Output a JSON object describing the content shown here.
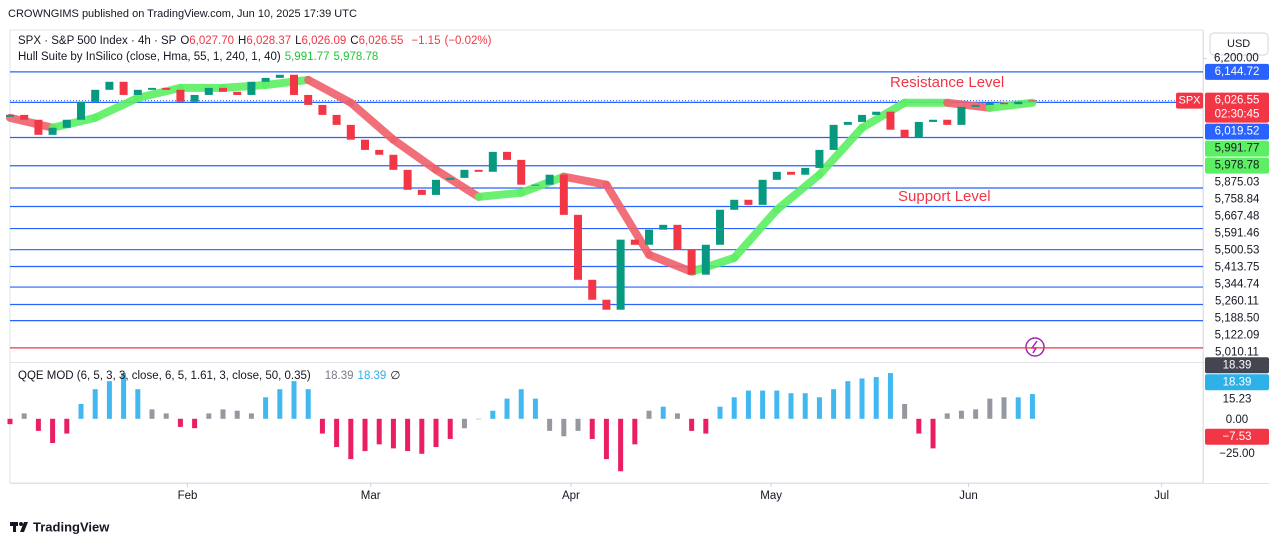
{
  "header": {
    "publisher": "CROWNGIMS published on TradingView.com, Jun 10, 2025 17:39 UTC",
    "brand": "TradingView"
  },
  "chart_data": [
    {
      "type": "candlestick",
      "symbol": "SPX · S&P 500 Index · 4h · SP",
      "ohlc_legend": [
        {
          "key": "O",
          "value": 6027.7,
          "label": "6,027.70"
        },
        {
          "key": "H",
          "value": 6028.37,
          "label": "6,028.37"
        },
        {
          "key": "L",
          "value": 6026.09,
          "label": "6,026.09"
        },
        {
          "key": "C",
          "value": 6026.55,
          "label": "6,026.55"
        }
      ],
      "change": {
        "value": -1.15,
        "label": "−1.15"
      },
      "change_pct": {
        "value": -0.02,
        "label": "(−0.02%)"
      },
      "currency": "USD",
      "xlim": [
        0,
        83.8
      ],
      "xticks": [
        {
          "value": 12.5,
          "label": "Feb"
        },
        {
          "value": 25.4,
          "label": "Mar"
        },
        {
          "value": 39.5,
          "label": "Apr"
        },
        {
          "value": 53.6,
          "label": "May"
        },
        {
          "value": 67.5,
          "label": "Jun"
        },
        {
          "value": 81.1,
          "label": "Jul"
        }
      ],
      "ylim": [
        4952,
        6317
      ],
      "yticks": [
        {
          "value": 6200,
          "label": "6,200.00"
        }
      ],
      "grid": false,
      "up_color": "#089981",
      "down_color": "#f23645",
      "open": [
        5960,
        5968,
        5948,
        5886,
        5915,
        5948,
        6022,
        6071,
        6104,
        6050,
        6071,
        6079,
        6071,
        6022,
        6050,
        6079,
        6063,
        6050,
        6104,
        6120,
        6133,
        6050,
        6009,
        5968,
        5927,
        5866,
        5824,
        5804,
        5742,
        5660,
        5639,
        5701,
        5709,
        5742,
        5734,
        5816,
        5783,
        5681,
        5681,
        5722,
        5557,
        5290,
        5208,
        5167,
        5455,
        5434,
        5496,
        5516,
        5413,
        5311,
        5434,
        5578,
        5619,
        5598,
        5701,
        5734,
        5722,
        5750,
        5824,
        5927,
        5939,
        5968,
        5981,
        5907,
        5874,
        5939,
        5948,
        5927,
        6001,
        6009,
        6018,
        6012,
        6027.7
      ],
      "close": [
        5968,
        5948,
        5886,
        5915,
        5948,
        6022,
        6071,
        6104,
        6050,
        6071,
        6079,
        6071,
        6022,
        6050,
        6079,
        6063,
        6050,
        6104,
        6120,
        6133,
        6050,
        6009,
        5968,
        5927,
        5866,
        5824,
        5804,
        5742,
        5660,
        5639,
        5701,
        5709,
        5742,
        5734,
        5816,
        5783,
        5681,
        5681,
        5722,
        5557,
        5290,
        5208,
        5167,
        5455,
        5434,
        5496,
        5516,
        5413,
        5311,
        5434,
        5578,
        5619,
        5598,
        5701,
        5734,
        5722,
        5750,
        5824,
        5927,
        5939,
        5968,
        5981,
        5907,
        5874,
        5939,
        5948,
        5927,
        6001,
        6009,
        6018,
        6012,
        6022,
        6026.55
      ],
      "current": {
        "value": 6026.55,
        "label": "6,026.55",
        "tag": "SPX",
        "countdown": "02:30:45",
        "color": "#f23645"
      },
      "levels": [
        {
          "value": 6144.72,
          "label": "6,144.72",
          "color": "#2962ff",
          "boxed": true
        },
        {
          "value": 6019.52,
          "label": "6,019.52",
          "color": "#2962ff",
          "boxed": true
        },
        {
          "value": 5875.03,
          "label": "5,875.03",
          "color": "#2962ff",
          "boxed": false
        },
        {
          "value": 5758.84,
          "label": "5,758.84",
          "color": "#2962ff",
          "boxed": false
        },
        {
          "value": 5667.48,
          "label": "5,667.48",
          "color": "#2962ff",
          "boxed": false
        },
        {
          "value": 5591.46,
          "label": "5,591.46",
          "color": "#2962ff",
          "boxed": false
        },
        {
          "value": 5500.53,
          "label": "5,500.53",
          "color": "#2962ff",
          "boxed": false
        },
        {
          "value": 5413.75,
          "label": "5,413.75",
          "color": "#2962ff",
          "boxed": false
        },
        {
          "value": 5344.74,
          "label": "5,344.74",
          "color": "#2962ff",
          "boxed": false
        },
        {
          "value": 5260.11,
          "label": "5,260.11",
          "color": "#2962ff",
          "boxed": false
        },
        {
          "value": 5188.5,
          "label": "5,188.50",
          "color": "#2962ff",
          "boxed": false
        },
        {
          "value": 5122.09,
          "label": "5,122.09",
          "color": "#2962ff",
          "boxed": false
        },
        {
          "value": 5010.11,
          "label": "5,010.11",
          "color": "#f23645",
          "boxed": false
        }
      ],
      "hull": {
        "name": "Hull Suite by InSilico (close, Hma, 55, 1, 240, 1, 40)",
        "up_color": "#5cef63",
        "down_color": "#f0606b",
        "x": [
          0,
          3,
          6,
          9,
          12,
          15,
          18,
          21,
          24,
          27,
          30,
          33,
          36,
          39,
          42,
          45,
          48,
          51,
          54,
          57,
          60,
          63,
          66,
          69,
          72
        ],
        "values": [
          5956,
          5915,
          5956,
          6038,
          6079,
          6079,
          6091,
          6112,
          6018,
          5866,
          5742,
          5631,
          5648,
          5714,
          5681,
          5393,
          5323,
          5380,
          5578,
          5722,
          5915,
          6018,
          6018,
          5997,
          6018
        ],
        "legend_values": [
          {
            "value": 5991.77,
            "label": "5,991.77"
          },
          {
            "value": 5978.78,
            "label": "5,978.78"
          }
        ]
      },
      "annotations": [
        "Resistance Level",
        "Support Level"
      ]
    },
    {
      "type": "bar",
      "name": "QQE MOD (6, 5, 3, 3, close, 6, 5, 1.61, 3, close, 50, 0.35)",
      "legend_values": [
        18.39,
        18.39
      ],
      "legend_colors": [
        "#787b86",
        "#2eb1e8"
      ],
      "empty_symbol": "∅",
      "ylim": [
        -47,
        40
      ],
      "yticks": [
        15.23,
        {
          "value": 0,
          "label": "0.00"
        },
        {
          "value": -25,
          "label": "−25.00"
        }
      ],
      "markers": [
        {
          "value": 18.39,
          "color": "#2eb1e8"
        },
        {
          "value": 18.39,
          "color": "#434651"
        },
        {
          "value": -7.53,
          "label": "−7.53",
          "color": "#f23645"
        }
      ],
      "values": [
        -4,
        4,
        -9,
        -18,
        -11,
        11,
        22,
        28,
        34,
        22,
        7,
        4,
        -6,
        -7,
        4,
        7,
        6,
        4,
        16,
        22,
        28,
        22,
        -11,
        -21,
        -30,
        -24,
        -19,
        -22,
        -24,
        -26,
        -21,
        -15,
        -7,
        0,
        6,
        15,
        22,
        15,
        -9,
        -13,
        -9,
        -15,
        -30,
        -39,
        -19,
        6,
        9,
        4,
        -9,
        -11,
        9,
        16,
        21,
        21,
        21,
        19,
        19,
        16,
        22,
        28,
        30,
        31,
        34,
        11,
        -11,
        -22,
        4,
        6,
        7,
        15,
        16,
        16,
        18.39
      ],
      "colors": [
        "#e91e63",
        "#9598a1",
        "#e91e63",
        "#e91e63",
        "#e91e63",
        "#42b8f0",
        "#42b8f0",
        "#42b8f0",
        "#42b8f0",
        "#42b8f0",
        "#9598a1",
        "#9598a1",
        "#e91e63",
        "#e91e63",
        "#9598a1",
        "#9598a1",
        "#9598a1",
        "#9598a1",
        "#42b8f0",
        "#42b8f0",
        "#42b8f0",
        "#42b8f0",
        "#e91e63",
        "#e91e63",
        "#e91e63",
        "#e91e63",
        "#e91e63",
        "#e91e63",
        "#e91e63",
        "#e91e63",
        "#e91e63",
        "#e91e63",
        "#9598a1",
        "#9598a1",
        "#42b8f0",
        "#42b8f0",
        "#42b8f0",
        "#42b8f0",
        "#9598a1",
        "#9598a1",
        "#9598a1",
        "#e91e63",
        "#e91e63",
        "#e91e63",
        "#e91e63",
        "#9598a1",
        "#42b8f0",
        "#9598a1",
        "#e91e63",
        "#e91e63",
        "#42b8f0",
        "#42b8f0",
        "#42b8f0",
        "#42b8f0",
        "#42b8f0",
        "#42b8f0",
        "#42b8f0",
        "#42b8f0",
        "#42b8f0",
        "#42b8f0",
        "#42b8f0",
        "#42b8f0",
        "#42b8f0",
        "#9598a1",
        "#e91e63",
        "#e91e63",
        "#9598a1",
        "#9598a1",
        "#9598a1",
        "#9598a1",
        "#9598a1",
        "#42b8f0",
        "#42b8f0"
      ]
    }
  ]
}
